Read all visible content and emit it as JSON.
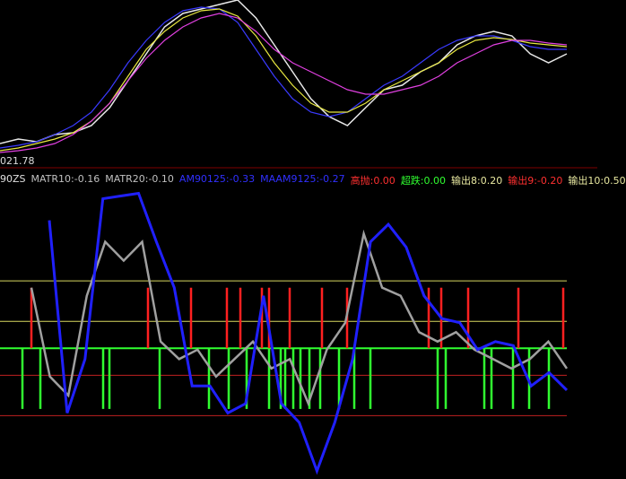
{
  "chart_data": [
    {
      "type": "line",
      "price_label": "021.78",
      "ylim": [
        0,
        180
      ],
      "series": [
        {
          "name": "close",
          "color": "#e8e8e8",
          "values": [
            20,
            25,
            22,
            30,
            32,
            40,
            60,
            90,
            120,
            150,
            165,
            170,
            175,
            180,
            160,
            130,
            100,
            70,
            50,
            40,
            60,
            80,
            85,
            100,
            110,
            130,
            140,
            145,
            140,
            120,
            110,
            120
          ]
        },
        {
          "name": "ma-fast",
          "color": "#3a3aff",
          "values": [
            15,
            18,
            22,
            30,
            40,
            55,
            80,
            110,
            135,
            155,
            168,
            172,
            170,
            155,
            125,
            95,
            70,
            55,
            50,
            55,
            70,
            85,
            95,
            110,
            125,
            135,
            140,
            140,
            135,
            128,
            125,
            125
          ]
        },
        {
          "name": "ma-mid",
          "color": "#e8e840",
          "values": [
            12,
            15,
            20,
            25,
            32,
            45,
            65,
            95,
            125,
            145,
            160,
            168,
            170,
            162,
            140,
            110,
            85,
            65,
            55,
            55,
            65,
            80,
            90,
            100,
            110,
            125,
            135,
            138,
            136,
            132,
            130,
            128
          ]
        },
        {
          "name": "ma-slow",
          "color": "#e040e0",
          "values": [
            10,
            12,
            15,
            20,
            30,
            45,
            65,
            90,
            115,
            135,
            150,
            160,
            165,
            160,
            145,
            125,
            110,
            100,
            90,
            80,
            75,
            75,
            80,
            85,
            95,
            110,
            120,
            130,
            135,
            135,
            132,
            130
          ]
        }
      ]
    },
    {
      "type": "indicator",
      "ylim": [
        -0.97,
        1.32
      ],
      "xlim": [
        0,
        666
      ],
      "header_labels": [
        {
          "text": "90ZS",
          "color": "#e0e0e0"
        },
        {
          "text": "MATR10:-0.16",
          "color": "#c0c0c0"
        },
        {
          "text": "MATR20:-0.10",
          "color": "#c0c0c0"
        },
        {
          "text": "AM90125:-0.33",
          "color": "#3030ff"
        },
        {
          "text": "MAAM9125:-0.27",
          "color": "#3030ff"
        },
        {
          "text": "高抛:0.00",
          "color": "#ff3030"
        },
        {
          "text": "超跌:0.00",
          "color": "#30ff30"
        },
        {
          "text": "输出8:0.20",
          "color": "#e8e8a0"
        },
        {
          "text": "输出9:-0.20",
          "color": "#ff3030"
        },
        {
          "text": "输出10:0.50",
          "color": "#e8e8a0"
        }
      ],
      "levels": [
        {
          "value": 0.5,
          "color": "#d8d860"
        },
        {
          "value": 0.2,
          "color": "#d8d860"
        },
        {
          "value": 0,
          "color": "#30ff30"
        },
        {
          "value": -0.2,
          "color": "#c02020"
        },
        {
          "value": -0.5,
          "color": "#c02020"
        }
      ],
      "series": [
        {
          "name": "gray",
          "color": "#a0a0a0",
          "x_start": 35,
          "values": [
            0.45,
            -0.21,
            -0.35,
            0.39,
            0.79,
            0.65,
            0.79,
            0.05,
            -0.08,
            -0.01,
            -0.21,
            -0.08,
            0.05,
            -0.15,
            -0.08,
            -0.41,
            -0.01,
            0.19,
            0.85,
            0.45,
            0.39,
            0.12,
            0.05,
            0.12,
            -0.01,
            -0.08,
            -0.15,
            -0.08,
            0.05,
            -0.15
          ]
        },
        {
          "name": "blue",
          "color": "#2020ff",
          "x_start": 55,
          "values": [
            0.95,
            -0.48,
            -0.08,
            1.11,
            1.13,
            1.15,
            0.79,
            0.45,
            -0.28,
            -0.28,
            -0.48,
            -0.41,
            0.39,
            -0.41,
            -0.55,
            -0.91,
            -0.55,
            -0.08,
            0.79,
            0.92,
            0.75,
            0.39,
            0.22,
            0.19,
            -0.01,
            0.05,
            0.02,
            -0.28,
            -0.18,
            -0.31
          ]
        }
      ],
      "red_bars": {
        "color": "#ff2020",
        "x": [
          35,
          165,
          213,
          253,
          268,
          292,
          300,
          323,
          359,
          387,
          478,
          492,
          522,
          578,
          628
        ],
        "value": 0.45
      },
      "green_bars": {
        "color": "#30ff30",
        "x": [
          25,
          45,
          115,
          122,
          178,
          233,
          255,
          275,
          300,
          313,
          318,
          327,
          335,
          345,
          357,
          378,
          395,
          413,
          488,
          497,
          540,
          548,
          572,
          590,
          612
        ],
        "value": -0.45
      }
    }
  ]
}
